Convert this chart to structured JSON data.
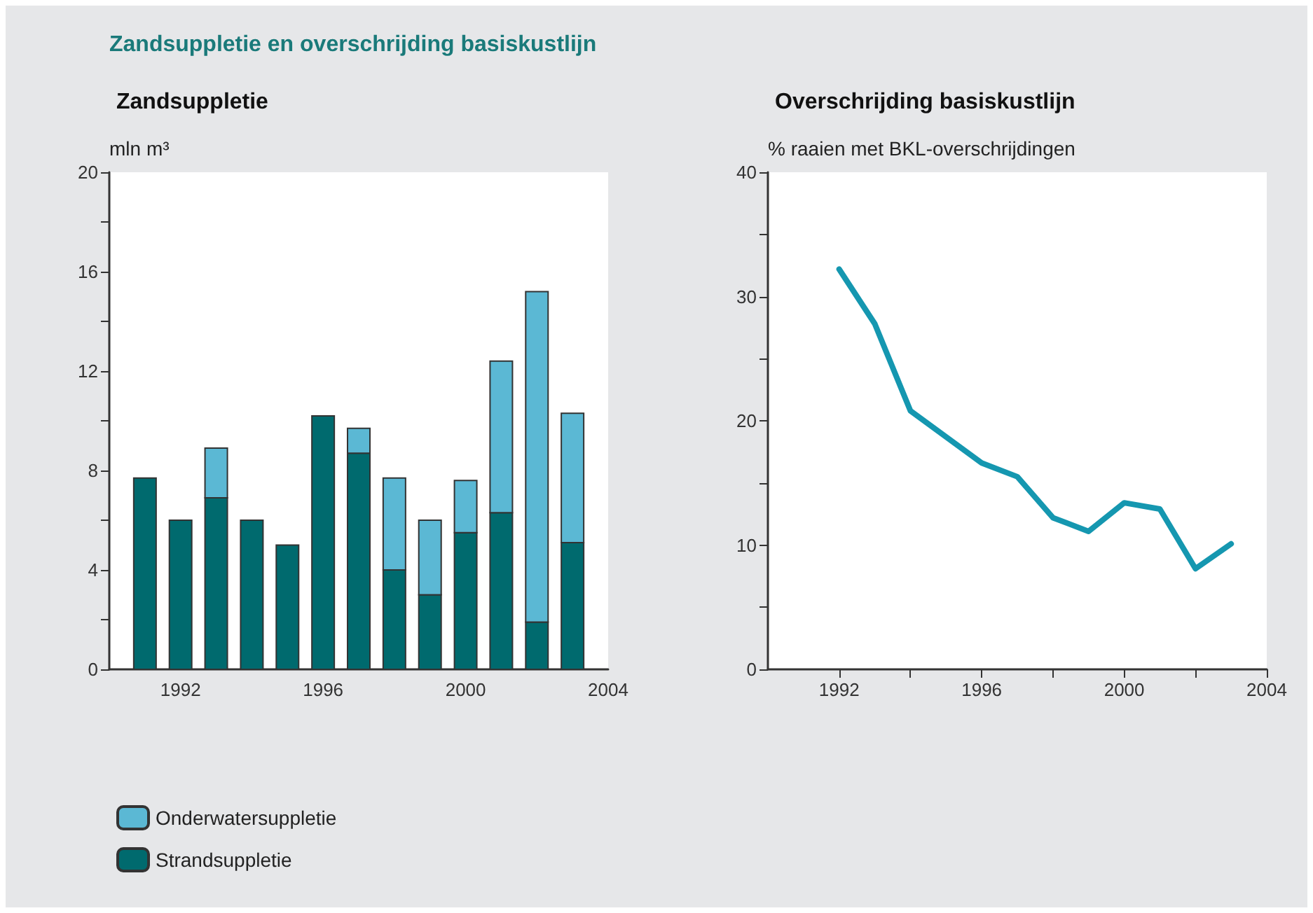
{
  "chart_data": [
    {
      "type": "bar",
      "title": "Zandsuppletie",
      "ylabel": "mln m³",
      "annotations": [
        "Zandsuppletie en overschrijding basiskustlijn"
      ],
      "x": [
        1991,
        1992,
        1993,
        1994,
        1995,
        1996,
        1997,
        1998,
        1999,
        2000,
        2001,
        2002,
        2003
      ],
      "stacked": true,
      "series": [
        {
          "name": "Strandsuppletie",
          "color": "#006a6e",
          "values": [
            7.7,
            6.0,
            6.9,
            6.0,
            5.0,
            10.2,
            8.7,
            4.0,
            3.0,
            5.5,
            6.3,
            1.9,
            5.1
          ]
        },
        {
          "name": "Onderwatersuppletie",
          "color": "#5bb8d4",
          "values": [
            0,
            0,
            2.0,
            0,
            0,
            0,
            1.0,
            3.7,
            3.0,
            2.1,
            6.1,
            13.3,
            5.2
          ]
        }
      ],
      "xlim": [
        1990,
        2004
      ],
      "xticks": [
        1992,
        1996,
        2000,
        2004
      ],
      "ylim": [
        0,
        20
      ],
      "yticks": [
        0,
        {
          "value": 2,
          "label": null
        },
        4,
        {
          "value": 6,
          "label": null
        },
        8,
        {
          "value": 10,
          "label": null
        },
        12,
        {
          "value": 14,
          "label": null
        },
        16,
        {
          "value": 18,
          "label": null
        },
        20
      ],
      "grid": false,
      "legend": "bottom left"
    },
    {
      "type": "line",
      "title": "Overschrijding basiskustlijn",
      "ylabel": "% raaien met BKL-overschrijdingen",
      "x": [
        1992,
        1993,
        1994,
        1995,
        1996,
        1997,
        1998,
        1999,
        2000,
        2001,
        2002,
        2003
      ],
      "series": [
        {
          "color": "#1597b0",
          "values": [
            32.2,
            27.8,
            20.8,
            18.7,
            16.6,
            15.5,
            12.2,
            11.1,
            13.4,
            12.9,
            8.1,
            10.1
          ]
        }
      ],
      "xlim": [
        1990,
        2004
      ],
      "xticks": [
        1992,
        {
          "value": 1994,
          "label": null
        },
        1996,
        {
          "value": 1998,
          "label": null
        },
        2000,
        {
          "value": 2002,
          "label": null
        },
        2004
      ],
      "ylim": [
        0,
        40
      ],
      "yticks": [
        0,
        {
          "value": 5,
          "label": null
        },
        10,
        {
          "value": 15,
          "label": null
        },
        20,
        {
          "value": 25,
          "label": null
        },
        30,
        {
          "value": 35,
          "label": null
        },
        40
      ],
      "grid": false,
      "legend": false,
      "marker": "none",
      "line_style": "solid"
    }
  ]
}
